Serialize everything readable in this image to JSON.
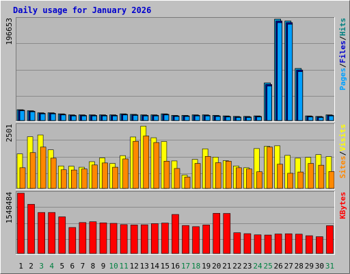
{
  "chart_data": {
    "type": "bar",
    "title": "Daily usage for January 2026",
    "categories": [
      "1",
      "2",
      "3",
      "4",
      "5",
      "6",
      "7",
      "8",
      "9",
      "10",
      "11",
      "12",
      "13",
      "14",
      "15",
      "16",
      "17",
      "18",
      "19",
      "20",
      "21",
      "22",
      "23",
      "24",
      "25",
      "26",
      "27",
      "28",
      "29",
      "30",
      "31"
    ],
    "weekend_days": [
      "3",
      "4",
      "10",
      "11",
      "17",
      "18",
      "24",
      "25",
      "31"
    ],
    "colors": {
      "background": "#c0c0c0",
      "plot_background": "#b8b8b8",
      "title": "#0000cc",
      "hits": "#00a0e0",
      "hits_dark": "#0000a0",
      "files": "#0070c0",
      "pages": "#00a0ff",
      "visits": "#ffff00",
      "sites": "#ff8800",
      "kbytes": "#ff0000",
      "weekday_label": "#000000",
      "weekend_label": "#008040",
      "legend_sep": "#000000"
    },
    "panels": [
      {
        "id": "hits-files-pages",
        "max_label": "196653",
        "max": 196653,
        "legend": [
          {
            "text": "Pages",
            "color": "#00a0ff"
          },
          {
            "text": "/",
            "color": "#000000"
          },
          {
            "text": "Files",
            "color": "#0000cc"
          },
          {
            "text": "/",
            "color": "#000000"
          },
          {
            "text": "Hits",
            "color": "#008080"
          }
        ],
        "series": [
          {
            "name": "Hits",
            "values": [
              21000,
              19000,
              15000,
              15000,
              13000,
              11000,
              11000,
              11000,
              11000,
              11000,
              13000,
              12000,
              11000,
              11000,
              13000,
              10000,
              10000,
              11000,
              11000,
              10000,
              9000,
              8000,
              8000,
              9000,
              73000,
              196653,
              193000,
              101000,
              9000,
              8000,
              11000
            ]
          },
          {
            "name": "Files",
            "values": [
              20000,
              18000,
              14000,
              14000,
              12000,
              10000,
              10000,
              10000,
              10000,
              10000,
              12000,
              11000,
              10000,
              10000,
              12000,
              9000,
              9000,
              10000,
              10000,
              9000,
              8000,
              7000,
              7000,
              8000,
              70000,
              193000,
              190000,
              98000,
              8000,
              7000,
              10000
            ]
          },
          {
            "name": "Pages",
            "values": [
              19000,
              17000,
              13000,
              13000,
              11000,
              9000,
              9000,
              9000,
              9000,
              9000,
              11000,
              10000,
              9000,
              9000,
              11000,
              8000,
              8000,
              9000,
              9000,
              8000,
              7000,
              6000,
              6000,
              7000,
              67000,
              190000,
              187000,
              95000,
              7000,
              6000,
              9000
            ]
          }
        ]
      },
      {
        "id": "visits-sites",
        "max_label": "2501",
        "max": 2501,
        "legend": [
          {
            "text": "Sites",
            "color": "#ff8800"
          },
          {
            "text": "/",
            "color": "#000000"
          },
          {
            "text": "Visits",
            "color": "#ffff00"
          }
        ],
        "series": [
          {
            "name": "Visits",
            "values": [
              1370,
              2050,
              2120,
              1530,
              890,
              880,
              840,
              1060,
              1210,
              990,
              1300,
              2040,
              2470,
              2010,
              1860,
              1090,
              530,
              1150,
              1570,
              1240,
              1100,
              890,
              820,
              1580,
              1670,
              1690,
              1310,
              1200,
              1230,
              1340,
              1260
            ]
          },
          {
            "name": "Sites",
            "values": [
              820,
              1420,
              1640,
              1200,
              740,
              730,
              770,
              930,
              1010,
              840,
              1170,
              1870,
              2080,
              1820,
              1080,
              790,
              450,
              990,
              1270,
              1020,
              1080,
              820,
              770,
              660,
              1640,
              960,
              600,
              650,
              990,
              920,
              670
            ]
          }
        ]
      },
      {
        "id": "kbytes",
        "max_label": "1548484",
        "max": 1548484,
        "legend": [
          {
            "text": "KBytes",
            "color": "#ff0000"
          }
        ],
        "series": [
          {
            "name": "KBytes",
            "values": [
              1548484,
              1263000,
              1053000,
              1053000,
              941000,
              668000,
              794000,
              815000,
              786000,
              774000,
              741000,
              732000,
              737000,
              766000,
              781000,
              1002000,
              718000,
              689000,
              732000,
              1031000,
              1028000,
              533000,
              509000,
              479000,
              474000,
              500000,
              506000,
              496000,
              456000,
              431000,
              714000
            ]
          }
        ]
      }
    ],
    "xlabel": "",
    "ylabel": ""
  }
}
